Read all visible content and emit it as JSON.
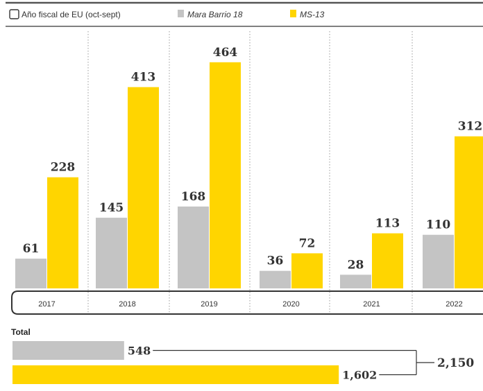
{
  "chart_data": {
    "type": "bar",
    "legend": {
      "checkbox_label": "Año fiscal de EU (oct-sept)",
      "placement": "top"
    },
    "categories": [
      "2017",
      "2018",
      "2019",
      "2020",
      "2021",
      "2022"
    ],
    "series": [
      {
        "name": "Mara Barrio 18",
        "color": "#c4c4c4",
        "values": [
          61,
          145,
          168,
          36,
          28,
          110
        ]
      },
      {
        "name": "MS-13",
        "color": "#ffd500",
        "values": [
          228,
          413,
          464,
          72,
          113,
          312
        ]
      }
    ],
    "value_labels": {
      "Mara Barrio 18": [
        "61",
        "145",
        "168",
        "36",
        "28",
        "110"
      ],
      "MS-13": [
        "228",
        "413",
        "464",
        "72",
        "113",
        "312"
      ]
    },
    "ylim": [
      0,
      500
    ],
    "totals": {
      "title": "Total",
      "values": [
        548,
        1602
      ],
      "labels": [
        "548",
        "1,602"
      ],
      "grand_total": 2150,
      "grand_total_label": "2,150"
    }
  }
}
